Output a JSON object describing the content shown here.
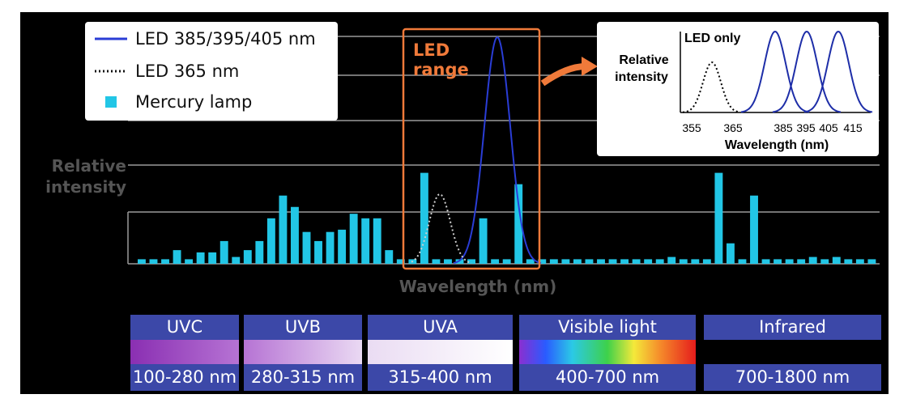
{
  "chart_data": {
    "type": "bar",
    "ylabel": "Relative intensity",
    "xlabel": "Wavelength (nm)",
    "led_range_label": "LED range",
    "series": [
      {
        "name": "LED 385/395/405 nm",
        "style": "line",
        "color": "#2a3dd6"
      },
      {
        "name": "LED 365 nm",
        "style": "dotted",
        "color": "#cccccc"
      },
      {
        "name": "Mercury lamp",
        "style": "bar",
        "color": "#22c6e6",
        "values": [
          0.02,
          0.02,
          0.02,
          0.06,
          0.02,
          0.05,
          0.05,
          0.1,
          0.03,
          0.06,
          0.1,
          0.2,
          0.3,
          0.25,
          0.14,
          0.1,
          0.14,
          0.15,
          0.22,
          0.2,
          0.2,
          0.06,
          0.02,
          0.02,
          0.4,
          0.02,
          0.02,
          0.02,
          0.02,
          0.2,
          0.02,
          0.02,
          0.35,
          0.02,
          0.02,
          0.02,
          0.02,
          0.02,
          0.02,
          0.02,
          0.02,
          0.02,
          0.02,
          0.02,
          0.02,
          0.03,
          0.02,
          0.02,
          0.02,
          0.4,
          0.09,
          0.02,
          0.3,
          0.02,
          0.02,
          0.02,
          0.02,
          0.03,
          0.02,
          0.03,
          0.02,
          0.02,
          0.02
        ]
      }
    ],
    "grid": true
  },
  "legend": {
    "items": [
      {
        "label": "LED 385/395/405 nm"
      },
      {
        "label": "LED 365 nm"
      },
      {
        "label": "Mercury lamp"
      }
    ]
  },
  "inset": {
    "title": "LED only",
    "ylabel_line1": "Relative",
    "ylabel_line2": "intensity",
    "xlabel": "Wavelength (nm)",
    "ticks": [
      "355",
      "365",
      "385",
      "395",
      "405",
      "415"
    ],
    "peaks_solid": [
      385,
      395,
      405
    ],
    "peak_dotted": 365
  },
  "axes": {
    "ylabel_line1": "Relative",
    "ylabel_line2": "intensity",
    "xlabel": "Wavelength (nm)",
    "led_line1": "LED",
    "led_line2": "range"
  },
  "bands": [
    {
      "name": "UVC",
      "range": "100-280 nm"
    },
    {
      "name": "UVB",
      "range": "280-315 nm"
    },
    {
      "name": "UVA",
      "range": "315-400 nm"
    },
    {
      "name": "Visible light",
      "range": "400-700 nm"
    },
    {
      "name": "Infrared",
      "range": "700-1800 nm"
    }
  ],
  "colors": {
    "band_header": "#3c48a8",
    "led_box": "#f07a3a",
    "mercury": "#22c6e6",
    "led_curve": "#2a3dd6"
  }
}
